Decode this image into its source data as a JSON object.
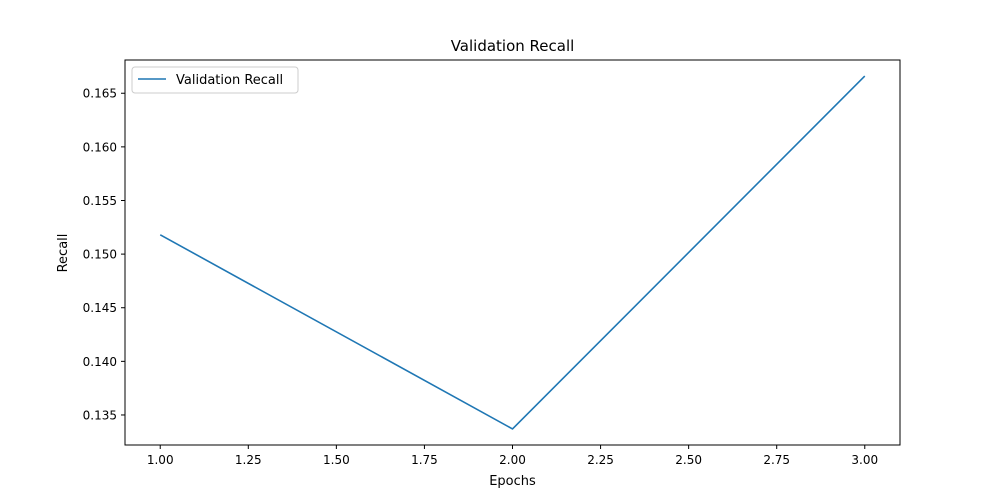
{
  "chart_data": {
    "type": "line",
    "title": "Validation Recall",
    "xlabel": "Epochs",
    "ylabel": "Recall",
    "x": [
      1.0,
      2.0,
      3.0
    ],
    "series": [
      {
        "name": "Validation Recall",
        "values": [
          0.1518,
          0.1337,
          0.1666
        ],
        "color": "#1f77b4"
      }
    ],
    "xlim": [
      0.9,
      3.1
    ],
    "ylim": [
      0.1322,
      0.1681
    ],
    "xticks": [
      1.0,
      1.25,
      1.5,
      1.75,
      2.0,
      2.25,
      2.5,
      2.75,
      3.0
    ],
    "xtick_labels": [
      "1.00",
      "1.25",
      "1.50",
      "1.75",
      "2.00",
      "2.25",
      "2.50",
      "2.75",
      "3.00"
    ],
    "yticks": [
      0.135,
      0.14,
      0.145,
      0.15,
      0.155,
      0.16,
      0.165
    ],
    "ytick_labels": [
      "0.135",
      "0.140",
      "0.145",
      "0.150",
      "0.155",
      "0.160",
      "0.165"
    ],
    "grid": false,
    "legend_position": "upper-left"
  }
}
